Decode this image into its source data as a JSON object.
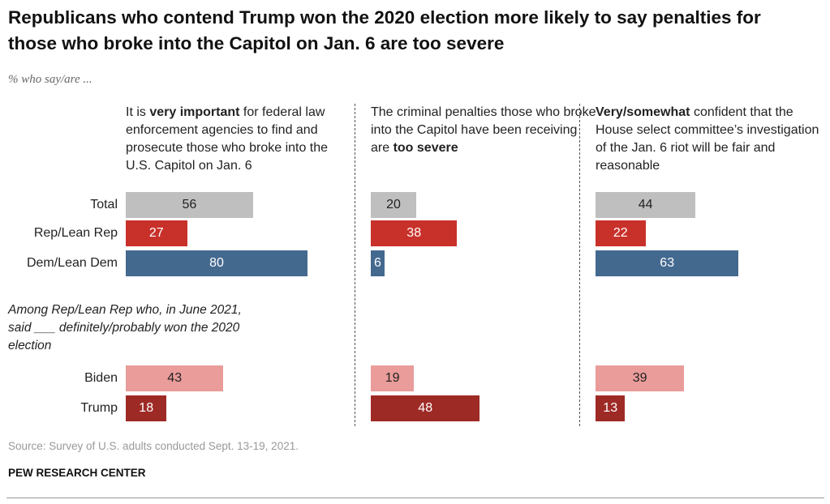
{
  "chart_data": {
    "type": "bar",
    "title": "Republicans who contend Trump won the 2020 election more likely to say penalties for those who broke into the Capitol on Jan. 6 are too severe",
    "subtitle": "% who say/are ...",
    "categories": [
      "Total",
      "Rep/Lean Rep",
      "Dem/Lean Dem",
      "Biden",
      "Trump"
    ],
    "colors": [
      "#bfbfbf",
      "#c8312a",
      "#44698f",
      "#e99c9a",
      "#9e2a26"
    ],
    "value_label_colors": [
      "#222222",
      "#ffffff",
      "#ffffff",
      "#222222",
      "#ffffff"
    ],
    "group_note": "Among Rep/Lean Rep who, in June 2021, said ___ definitely/probably won the 2020 election",
    "panels": [
      {
        "header": [
          {
            "text": "It is "
          },
          {
            "text": "very important",
            "bold": true
          },
          {
            "text": " for federal law enforcement agencies to find and prosecute those who broke into the U.S. Capitol on Jan. 6"
          }
        ],
        "values": [
          56,
          27,
          80,
          43,
          18
        ]
      },
      {
        "header": [
          {
            "text": "The criminal penalties those who broke into the Capitol have been receiving are "
          },
          {
            "text": "too severe",
            "bold": true
          }
        ],
        "values": [
          20,
          38,
          6,
          19,
          48
        ]
      },
      {
        "header": [
          {
            "text": "Very/somewhat",
            "bold": true
          },
          {
            "text": " confident that the House select committee’s investigation of the Jan. 6 riot will be fair and reasonable"
          }
        ],
        "values": [
          44,
          22,
          63,
          39,
          13
        ]
      }
    ],
    "source": "Source: Survey of U.S. adults conducted Sept. 13-19, 2021.",
    "credit": "PEW RESEARCH CENTER"
  }
}
